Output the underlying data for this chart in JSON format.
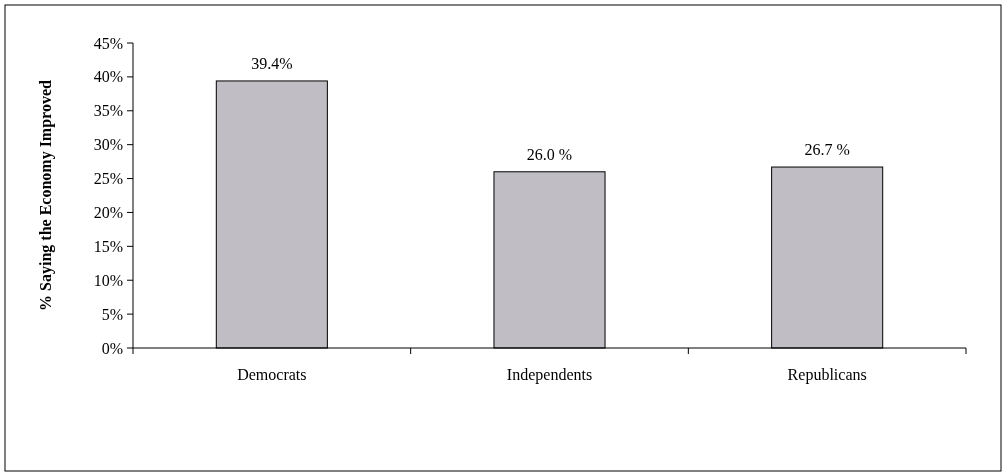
{
  "chart_data": {
    "type": "bar",
    "ylabel": "% Saying the Economy Improved",
    "categories": [
      "Democrats",
      "Independents",
      "Republicans"
    ],
    "values": [
      39.4,
      26.0,
      26.7
    ],
    "value_labels": [
      "39.4%",
      "26.0 %",
      "26.7 %"
    ],
    "color": "#c0bec4",
    "ylim": [
      0,
      45
    ],
    "yticks": [
      {
        "value": 0,
        "label": "0%"
      },
      {
        "value": 5,
        "label": "5%"
      },
      {
        "value": 10,
        "label": "10%"
      },
      {
        "value": 15,
        "label": "15%"
      },
      {
        "value": 20,
        "label": "20%"
      },
      {
        "value": 25,
        "label": "25%"
      },
      {
        "value": 30,
        "label": "30%"
      },
      {
        "value": 35,
        "label": "35%"
      },
      {
        "value": 40,
        "label": "40%"
      },
      {
        "value": 45,
        "label": "45%"
      }
    ],
    "grid": false
  }
}
